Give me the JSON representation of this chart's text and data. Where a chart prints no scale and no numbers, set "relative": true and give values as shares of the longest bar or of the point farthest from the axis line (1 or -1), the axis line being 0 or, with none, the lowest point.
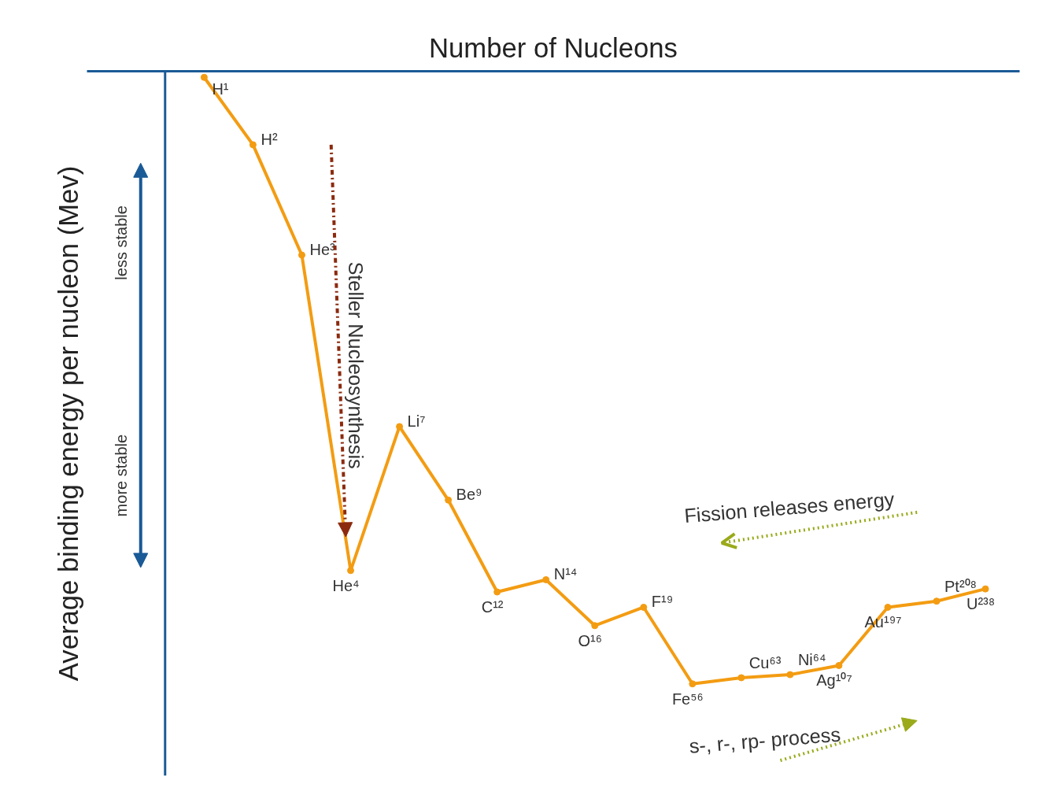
{
  "chart_data": {
    "type": "line",
    "relative": true,
    "xlabel": "Number of Nucleons",
    "ylabel": "Average binding energy per nucleon (Mev)",
    "grid": false,
    "marker": "circle",
    "line_style": "solid",
    "categories": [
      null,
      null,
      null,
      null,
      null,
      null,
      null,
      null,
      null,
      null,
      null,
      null,
      null,
      null,
      null,
      null,
      null
    ],
    "series": [
      {
        "color": "#f39c12",
        "values": [
          -0.01,
          -0.12,
          -0.3,
          -0.815,
          -0.58,
          -0.7,
          -0.85,
          -0.83,
          -0.905,
          -0.875,
          -1.0,
          -0.99,
          -0.985,
          -0.97,
          -0.875,
          -0.865,
          -0.845
        ]
      }
    ],
    "annotations": [
      "H¹",
      "H²",
      "He³",
      "He⁴",
      "Li⁷",
      "Be⁹",
      "C¹²",
      "N¹⁴",
      "O¹⁶",
      "F¹⁹",
      "Fe⁵⁶",
      "Cu⁶³",
      "Ni⁶⁴",
      "Ag¹⁰⁷",
      "Au¹⁹⁷",
      "Pt²⁰⁸",
      "U²³⁸",
      "less stable",
      "more stable",
      "Steller Nucleosynthesis",
      "Fission releases energy",
      "s-, r-, rp- process"
    ]
  }
}
